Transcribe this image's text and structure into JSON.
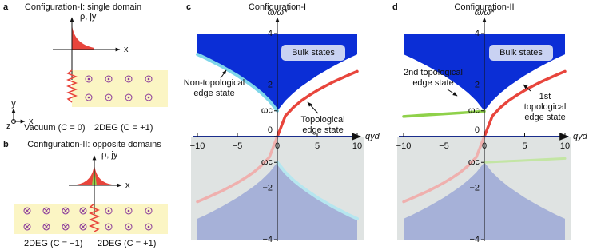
{
  "panels": {
    "a": {
      "label": "a",
      "title": "Configuration-I: single domain",
      "y_label": "ρ, jy",
      "x_label": "x",
      "left_region": "Vacuum (C = 0)",
      "right_region": "2DEG (C = +1)",
      "axes": [
        "y",
        "z",
        "x"
      ]
    },
    "b": {
      "label": "b",
      "title": "Configuration-II: opposite domains",
      "y_label": "ρ, jy",
      "x_label": "x",
      "left_region": "2DEG (C = −1)",
      "right_region": "2DEG (C = +1)"
    }
  },
  "chart_data": [
    {
      "type": "line",
      "panel_label": "c",
      "title": "Configuration-I",
      "x_label": "qyd",
      "y_label": "ω/ω*",
      "x": [
        -10,
        -9,
        -8,
        -7,
        -6,
        -5,
        -4,
        -3,
        -2,
        -1,
        0,
        1,
        2,
        3,
        4,
        5,
        6,
        7,
        8,
        9,
        10
      ],
      "xlim": [
        -10,
        10
      ],
      "ylim": [
        -4,
        4
      ],
      "xticks": [
        {
          "value": -10,
          "label": "−10"
        },
        {
          "value": -5,
          "label": "−5"
        },
        0,
        5,
        10
      ],
      "yticks": [
        {
          "value": -4,
          "label": "−4"
        },
        {
          "value": -2,
          "label": "−2"
        },
        {
          "value": -1,
          "label": "ωc"
        },
        0,
        {
          "value": 1,
          "label": "ωc"
        },
        2,
        4
      ],
      "lower_shade": "#dfe3e2",
      "series": [
        {
          "name": "Bulk states",
          "color": "#0b2ed6",
          "fill": "above",
          "values": [
            3.19,
            3.05,
            2.89,
            2.73,
            2.55,
            2.37,
            2.16,
            1.94,
            1.69,
            1.39,
            1,
            1.39,
            1.69,
            1.94,
            2.16,
            2.37,
            2.55,
            2.73,
            2.89,
            3.05,
            3.19
          ]
        },
        {
          "color": "#a6b1d8",
          "fill": "below",
          "values": [
            -3.19,
            -3.05,
            -2.89,
            -2.73,
            -2.55,
            -2.37,
            -2.16,
            -1.94,
            -1.69,
            -1.39,
            -1,
            -1.39,
            -1.69,
            -1.94,
            -2.16,
            -2.37,
            -2.55,
            -2.73,
            -2.89,
            -3.05,
            -3.19
          ]
        },
        {
          "color": "#7fd6ea",
          "width": 4,
          "values": [
            3.19,
            3.05,
            2.89,
            2.73,
            2.55,
            2.37,
            2.16,
            1.94,
            1.69,
            1.39,
            1,
            null,
            null,
            null,
            null,
            null,
            null,
            null,
            null,
            null,
            null
          ]
        },
        {
          "color": "#b6e6ef",
          "width": 4,
          "values": [
            null,
            null,
            null,
            null,
            null,
            null,
            null,
            null,
            null,
            null,
            -1,
            -1.39,
            -1.69,
            -1.94,
            -2.16,
            -2.37,
            -2.55,
            -2.73,
            -2.89,
            -3.05,
            -3.19
          ]
        },
        {
          "color": "#e8453c",
          "width": 3.5,
          "values": [
            null,
            null,
            null,
            null,
            null,
            null,
            null,
            null,
            null,
            null,
            0,
            0.8,
            1.13,
            1.39,
            1.6,
            1.79,
            1.96,
            2.12,
            2.26,
            2.4,
            2.53
          ]
        },
        {
          "color": "#efb0ae",
          "width": 3.5,
          "values": [
            -2.53,
            -2.4,
            -2.26,
            -2.12,
            -1.96,
            -1.79,
            -1.6,
            -1.39,
            -1.13,
            -0.8,
            0,
            null,
            null,
            null,
            null,
            null,
            null,
            null,
            null,
            null,
            null
          ]
        }
      ],
      "annotations": [
        [
          "Non-topological",
          "edge state"
        ],
        [
          "Topological",
          "edge state"
        ]
      ]
    },
    {
      "type": "line",
      "panel_label": "d",
      "title": "Configuration-II",
      "x_label": "qyd",
      "y_label": "ω/ω*",
      "x": [
        -10,
        -9,
        -8,
        -7,
        -6,
        -5,
        -4,
        -3,
        -2,
        -1,
        0,
        1,
        2,
        3,
        4,
        5,
        6,
        7,
        8,
        9,
        10
      ],
      "xlim": [
        -10,
        10
      ],
      "ylim": [
        -4,
        4
      ],
      "xticks": [
        {
          "value": -10,
          "label": "−10"
        },
        {
          "value": -5,
          "label": "−5"
        },
        0,
        5,
        10
      ],
      "yticks": [
        {
          "value": -4,
          "label": "−4"
        },
        {
          "value": -2,
          "label": "−2"
        },
        {
          "value": -1,
          "label": "ωc"
        },
        0,
        {
          "value": 1,
          "label": "ωc"
        },
        2,
        4
      ],
      "lower_shade": "#dfe3e2",
      "series": [
        {
          "name": "Bulk states",
          "color": "#0b2ed6",
          "fill": "above",
          "values": [
            3.19,
            3.05,
            2.89,
            2.73,
            2.55,
            2.37,
            2.16,
            1.94,
            1.69,
            1.39,
            1,
            1.39,
            1.69,
            1.94,
            2.16,
            2.37,
            2.55,
            2.73,
            2.89,
            3.05,
            3.19
          ]
        },
        {
          "color": "#a6b1d8",
          "fill": "below",
          "values": [
            -3.19,
            -3.05,
            -2.89,
            -2.73,
            -2.55,
            -2.37,
            -2.16,
            -1.94,
            -1.69,
            -1.39,
            -1,
            -1.39,
            -1.69,
            -1.94,
            -2.16,
            -2.37,
            -2.55,
            -2.73,
            -2.89,
            -3.05,
            -3.19
          ]
        },
        {
          "color": "#8fd14a",
          "width": 3.5,
          "values": [
            0.78,
            0.8,
            0.82,
            0.84,
            0.86,
            0.88,
            0.9,
            0.92,
            0.94,
            0.96,
            0.98,
            null,
            null,
            null,
            null,
            null,
            null,
            null,
            null,
            null,
            null
          ]
        },
        {
          "color": "#c3e5a4",
          "width": 3,
          "values": [
            null,
            null,
            null,
            null,
            null,
            null,
            null,
            null,
            null,
            null,
            -1,
            -0.985,
            -0.97,
            -0.955,
            -0.94,
            -0.925,
            -0.91,
            -0.895,
            -0.88,
            -0.865,
            -0.85
          ]
        },
        {
          "color": "#e8453c",
          "width": 3.5,
          "values": [
            null,
            null,
            null,
            null,
            null,
            null,
            null,
            null,
            null,
            null,
            0,
            0.8,
            1.13,
            1.39,
            1.6,
            1.79,
            1.96,
            2.12,
            2.26,
            2.4,
            2.53
          ]
        },
        {
          "color": "#efb0ae",
          "width": 3.5,
          "values": [
            -2.53,
            -2.4,
            -2.26,
            -2.12,
            -1.96,
            -1.79,
            -1.6,
            -1.39,
            -1.13,
            -0.8,
            0,
            null,
            null,
            null,
            null,
            null,
            null,
            null,
            null,
            null,
            null
          ]
        }
      ],
      "annotations": [
        [
          "2nd topological",
          "edge state"
        ],
        [
          "1st",
          "topological",
          "edge state"
        ]
      ]
    }
  ]
}
